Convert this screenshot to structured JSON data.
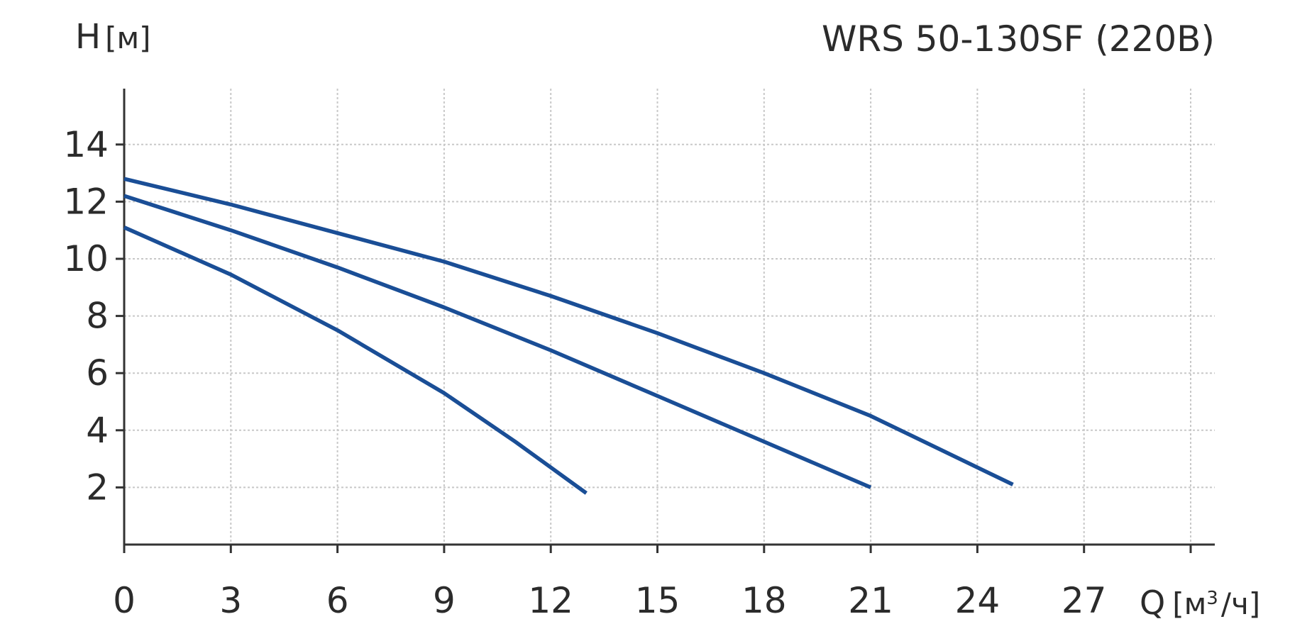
{
  "chart_data": {
    "type": "line",
    "title": "WRS 50-130SF (220В)",
    "ylabel_main": "H",
    "ylabel_unit": "[м]",
    "xlabel_main": "Q",
    "xlabel_unit_a": "[м",
    "xlabel_unit_sup": "3",
    "xlabel_unit_b": "/ч]",
    "xlim": [
      0,
      30
    ],
    "ylim": [
      0,
      15.6
    ],
    "x_ticks": [
      0,
      3,
      6,
      9,
      12,
      15,
      18,
      21,
      24,
      27
    ],
    "y_ticks": [
      2,
      4,
      6,
      8,
      10,
      12,
      14
    ],
    "x_grid": [
      3,
      6,
      9,
      12,
      15,
      18,
      21,
      24,
      27,
      30
    ],
    "y_grid": [
      2,
      4,
      6,
      8,
      10,
      12,
      14
    ],
    "grid": true,
    "line_color": "#1a4e96",
    "grid_color": "#c8c8c8",
    "axis_color": "#333333",
    "series": [
      {
        "values": [
          [
            0,
            11.1
          ],
          [
            3,
            9.45
          ],
          [
            6,
            7.5
          ],
          [
            9,
            5.3
          ],
          [
            11,
            3.6
          ],
          [
            13,
            1.8
          ]
        ]
      },
      {
        "values": [
          [
            0,
            12.2
          ],
          [
            3,
            11.0
          ],
          [
            6,
            9.7
          ],
          [
            9,
            8.3
          ],
          [
            12,
            6.8
          ],
          [
            15,
            5.2
          ],
          [
            18,
            3.6
          ],
          [
            21,
            2.0
          ]
        ]
      },
      {
        "values": [
          [
            0,
            12.8
          ],
          [
            3,
            11.9
          ],
          [
            6,
            10.9
          ],
          [
            9,
            9.9
          ],
          [
            12,
            8.7
          ],
          [
            15,
            7.4
          ],
          [
            18,
            6.0
          ],
          [
            21,
            4.5
          ],
          [
            25,
            2.1
          ]
        ]
      }
    ]
  }
}
